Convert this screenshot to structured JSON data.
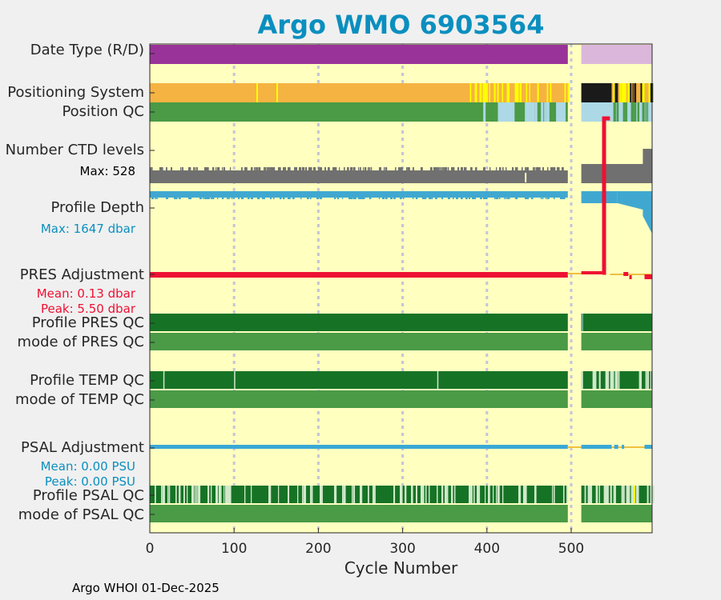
{
  "title": "Argo WMO 6903564",
  "footer": "Argo WHOI 01-Dec-2025",
  "labels": {
    "date_type": "Date Type (R/D)",
    "positioning": "Positioning System",
    "position_qc": "Position QC",
    "ctd_levels": "Number CTD levels",
    "ctd_max": "Max: 528",
    "profile_depth": "Profile Depth",
    "depth_max": "Max: 1647 dbar",
    "pres_adj": "PRES Adjustment",
    "pres_mean": "Mean: 0.13 dbar",
    "pres_peak": "Peak: 5.50 dbar",
    "profile_pres_qc": "Profile PRES QC",
    "mode_pres_qc": "mode of PRES QC",
    "profile_temp_qc": "Profile TEMP QC",
    "mode_temp_qc": "mode of TEMP QC",
    "psal_adj": "PSAL Adjustment",
    "psal_mean": "Mean: 0.00 PSU",
    "psal_peak": "Peak: 0.00 PSU",
    "profile_psal_qc": "Profile PSAL QC",
    "mode_psal_qc": "mode of PSAL QC"
  },
  "colors": {
    "background": "#ffffc0",
    "realtime": "#993399",
    "delayed": "#dbb8db",
    "gps": "#f5b342",
    "iridium": "#1a1a1a",
    "qc_good": "#4a9a46",
    "qc_dark": "#167325",
    "qc_light": "#add8e6",
    "qc_yellow": "#ffff00",
    "ctd": "#707070",
    "depth": "#40a8d0",
    "pres_adj": "#ee1133",
    "psal_adj": "#3aa8d6",
    "title": "#0a8fbf"
  },
  "chart_data": {
    "type": "heatmap",
    "title": "Argo WMO 6903564",
    "xlabel": "Cycle Number",
    "xlim": [
      0,
      596
    ],
    "x_ticks": [
      "0",
      "100",
      "200",
      "300",
      "400",
      "500"
    ],
    "x_tick_values": [
      0,
      100,
      200,
      300,
      400,
      500
    ],
    "grid_cycles": [
      100,
      200,
      300,
      400,
      500
    ],
    "data_gap": [
      496,
      512
    ],
    "ctd_levels_max": 528,
    "profile_depth_max_dbar": 1647,
    "pres_adjustment": {
      "mean_dbar": 0.13,
      "peak_dbar": 5.5,
      "jump_cycle": 539
    },
    "psal_adjustment": {
      "mean_psu": 0.0,
      "peak_psu": 0.0
    },
    "rows": [
      {
        "name": "date_type",
        "segments": [
          [
            0,
            496,
            "realtime"
          ],
          [
            512,
            596,
            "delayed"
          ]
        ]
      },
      {
        "name": "positioning",
        "segments": [
          [
            0,
            375,
            "gps"
          ],
          [
            375,
            496,
            "gps-mixed"
          ],
          [
            512,
            548,
            "iridium"
          ],
          [
            548,
            596,
            "iridium-mixed"
          ]
        ]
      },
      {
        "name": "position_qc",
        "segments": [
          [
            0,
            387,
            "good"
          ],
          [
            387,
            496,
            "good-light-mixed"
          ],
          [
            512,
            596,
            "light-good-mixed"
          ]
        ]
      },
      {
        "name": "profile_pres_qc",
        "segments": [
          [
            0,
            496,
            "dark"
          ],
          [
            512,
            596,
            "dark"
          ]
        ]
      },
      {
        "name": "mode_pres_qc",
        "segments": [
          [
            0,
            496,
            "good"
          ],
          [
            512,
            596,
            "good"
          ]
        ]
      },
      {
        "name": "profile_temp_qc",
        "segments": [
          [
            0,
            496,
            "dark"
          ],
          [
            512,
            596,
            "dark-light-mixed"
          ]
        ]
      },
      {
        "name": "mode_temp_qc",
        "segments": [
          [
            0,
            496,
            "good"
          ],
          [
            512,
            596,
            "good"
          ]
        ]
      },
      {
        "name": "profile_psal_qc",
        "segments": [
          [
            0,
            496,
            "dark-light-mixed"
          ],
          [
            512,
            596,
            "dark-light-mixed"
          ]
        ]
      },
      {
        "name": "mode_psal_qc",
        "segments": [
          [
            0,
            496,
            "good"
          ],
          [
            512,
            596,
            "good"
          ]
        ]
      }
    ]
  }
}
